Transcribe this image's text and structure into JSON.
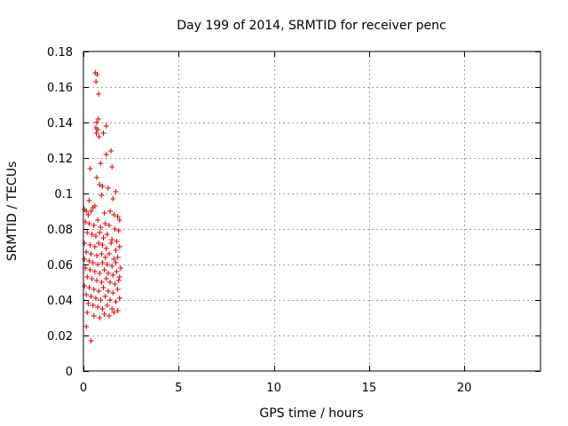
{
  "chart_data": {
    "type": "scatter",
    "title": "Day 199 of 2014, SRMTID for receiver penc",
    "xlabel": "GPS time / hours",
    "ylabel": "SRMTID / TECUs",
    "xlim": [
      0,
      24
    ],
    "ylim": [
      0,
      0.18
    ],
    "xticks": [
      0,
      5,
      10,
      15,
      20
    ],
    "xtick_labels": [
      "0",
      "5",
      "10",
      "15",
      "20"
    ],
    "yticks": [
      0,
      0.02,
      0.04,
      0.06,
      0.08,
      0.1,
      0.12,
      0.14,
      0.16,
      0.18
    ],
    "ytick_labels": [
      "0",
      "0.02",
      "0.04",
      "0.06",
      "0.08",
      "0.1",
      "0.12",
      "0.14",
      "0.16",
      "0.18"
    ],
    "grid": true,
    "marker": "+",
    "color": "#dd0000",
    "series": [
      {
        "points": [
          [
            0.62,
            0.168
          ],
          [
            0.72,
            0.167
          ],
          [
            0.66,
            0.163
          ],
          [
            0.8,
            0.156
          ],
          [
            0.78,
            0.142
          ],
          [
            0.7,
            0.14
          ],
          [
            0.65,
            0.137
          ],
          [
            0.75,
            0.136
          ],
          [
            0.68,
            0.134
          ],
          [
            0.82,
            0.132
          ],
          [
            1.2,
            0.138
          ],
          [
            1.05,
            0.134
          ],
          [
            1.45,
            0.124
          ],
          [
            1.2,
            0.122
          ],
          [
            1.5,
            0.115
          ],
          [
            0.9,
            0.117
          ],
          [
            0.35,
            0.114
          ],
          [
            0.7,
            0.109
          ],
          [
            0.85,
            0.105
          ],
          [
            1.0,
            0.104
          ],
          [
            1.3,
            0.103
          ],
          [
            0.95,
            0.099
          ],
          [
            1.7,
            0.101
          ],
          [
            1.55,
            0.097
          ],
          [
            0.3,
            0.096
          ],
          [
            0.6,
            0.093
          ],
          [
            0.05,
            0.091
          ],
          [
            0.15,
            0.09
          ],
          [
            0.25,
            0.088
          ],
          [
            0.4,
            0.09
          ],
          [
            0.5,
            0.092
          ],
          [
            1.1,
            0.089
          ],
          [
            1.4,
            0.09
          ],
          [
            1.6,
            0.088
          ],
          [
            1.8,
            0.087
          ],
          [
            1.9,
            0.085
          ],
          [
            0.1,
            0.084
          ],
          [
            0.3,
            0.083
          ],
          [
            0.55,
            0.082
          ],
          [
            0.75,
            0.085
          ],
          [
            0.9,
            0.081
          ],
          [
            1.15,
            0.083
          ],
          [
            1.35,
            0.082
          ],
          [
            1.65,
            0.08
          ],
          [
            1.85,
            0.079
          ],
          [
            0.2,
            0.078
          ],
          [
            0.45,
            0.077
          ],
          [
            0.65,
            0.076
          ],
          [
            0.85,
            0.078
          ],
          [
            1.05,
            0.075
          ],
          [
            1.25,
            0.077
          ],
          [
            1.5,
            0.074
          ],
          [
            1.75,
            0.073
          ],
          [
            0.05,
            0.072
          ],
          [
            0.35,
            0.071
          ],
          [
            0.6,
            0.07
          ],
          [
            0.8,
            0.072
          ],
          [
            1.0,
            0.071
          ],
          [
            1.2,
            0.069
          ],
          [
            1.45,
            0.072
          ],
          [
            1.7,
            0.068
          ],
          [
            1.9,
            0.07
          ],
          [
            0.15,
            0.067
          ],
          [
            0.4,
            0.066
          ],
          [
            0.7,
            0.065
          ],
          [
            0.95,
            0.066
          ],
          [
            1.15,
            0.064
          ],
          [
            1.35,
            0.066
          ],
          [
            1.6,
            0.063
          ],
          [
            1.8,
            0.064
          ],
          [
            0.05,
            0.063
          ],
          [
            0.3,
            0.062
          ],
          [
            0.5,
            0.061
          ],
          [
            0.75,
            0.06
          ],
          [
            1.0,
            0.061
          ],
          [
            1.25,
            0.06
          ],
          [
            1.5,
            0.059
          ],
          [
            1.7,
            0.061
          ],
          [
            1.95,
            0.058
          ],
          [
            0.1,
            0.058
          ],
          [
            0.35,
            0.057
          ],
          [
            0.6,
            0.056
          ],
          [
            0.85,
            0.055
          ],
          [
            1.1,
            0.057
          ],
          [
            1.3,
            0.055
          ],
          [
            1.55,
            0.054
          ],
          [
            1.75,
            0.056
          ],
          [
            1.9,
            0.053
          ],
          [
            0.2,
            0.053
          ],
          [
            0.45,
            0.052
          ],
          [
            0.7,
            0.051
          ],
          [
            0.95,
            0.05
          ],
          [
            1.2,
            0.052
          ],
          [
            1.4,
            0.05
          ],
          [
            1.65,
            0.049
          ],
          [
            1.85,
            0.051
          ],
          [
            0.05,
            0.048
          ],
          [
            0.3,
            0.047
          ],
          [
            0.55,
            0.046
          ],
          [
            0.8,
            0.045
          ],
          [
            1.05,
            0.047
          ],
          [
            1.3,
            0.045
          ],
          [
            1.55,
            0.044
          ],
          [
            1.8,
            0.046
          ],
          [
            0.15,
            0.043
          ],
          [
            0.4,
            0.042
          ],
          [
            0.65,
            0.041
          ],
          [
            0.9,
            0.04
          ],
          [
            1.15,
            0.042
          ],
          [
            1.4,
            0.04
          ],
          [
            1.7,
            0.039
          ],
          [
            1.9,
            0.041
          ],
          [
            0.25,
            0.038
          ],
          [
            0.5,
            0.037
          ],
          [
            0.75,
            0.036
          ],
          [
            1.0,
            0.035
          ],
          [
            1.25,
            0.037
          ],
          [
            1.5,
            0.035
          ],
          [
            1.8,
            0.034
          ],
          [
            0.2,
            0.033
          ],
          [
            0.55,
            0.031
          ],
          [
            0.85,
            0.03
          ],
          [
            1.1,
            0.032
          ],
          [
            1.35,
            0.031
          ],
          [
            1.6,
            0.033
          ],
          [
            0.15,
            0.025
          ],
          [
            0.4,
            0.017
          ]
        ]
      }
    ]
  }
}
